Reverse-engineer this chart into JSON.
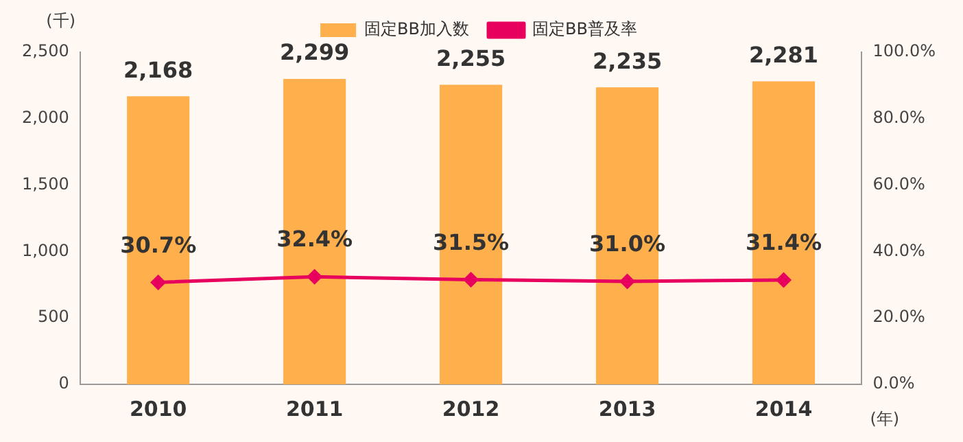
{
  "chart_data": {
    "type": "bar",
    "xlabel": "(年)",
    "ylabel": "(千)",
    "categories": [
      "2010",
      "2011",
      "2012",
      "2013",
      "2014"
    ],
    "series": [
      {
        "name": "固定BB加入数",
        "color": "#ffb04c",
        "values": [
          2168,
          2299,
          2255,
          2235,
          2281
        ],
        "value_labels": [
          "2,168",
          "2,299",
          "2,255",
          "2,235",
          "2,281"
        ]
      },
      {
        "name": "固定BB普及率",
        "type": "line",
        "axis": "y2",
        "color": "#e8005e",
        "marker": "diamond",
        "values": [
          30.7,
          32.4,
          31.5,
          31.0,
          31.4
        ],
        "value_labels": [
          "30.7%",
          "32.4%",
          "31.5%",
          "31.0%",
          "31.4%"
        ]
      }
    ],
    "ylim": [
      0,
      2500
    ],
    "yticks": [
      {
        "value": 0,
        "label": "0"
      },
      {
        "value": 500,
        "label": "500"
      },
      {
        "value": 1000,
        "label": "1,000"
      },
      {
        "value": 1500,
        "label": "1,500"
      },
      {
        "value": 2000,
        "label": "2,000"
      },
      {
        "value": 2500,
        "label": "2,500"
      }
    ],
    "y2lim": [
      0,
      100
    ],
    "y2ticks": [
      {
        "value": 0,
        "label": "0.0%"
      },
      {
        "value": 20,
        "label": "20.0%"
      },
      {
        "value": 40,
        "label": "40.0%"
      },
      {
        "value": 60,
        "label": "60.0%"
      },
      {
        "value": 80,
        "label": "80.0%"
      },
      {
        "value": 100,
        "label": "100.0%"
      }
    ],
    "grid": false,
    "legend": "top"
  }
}
